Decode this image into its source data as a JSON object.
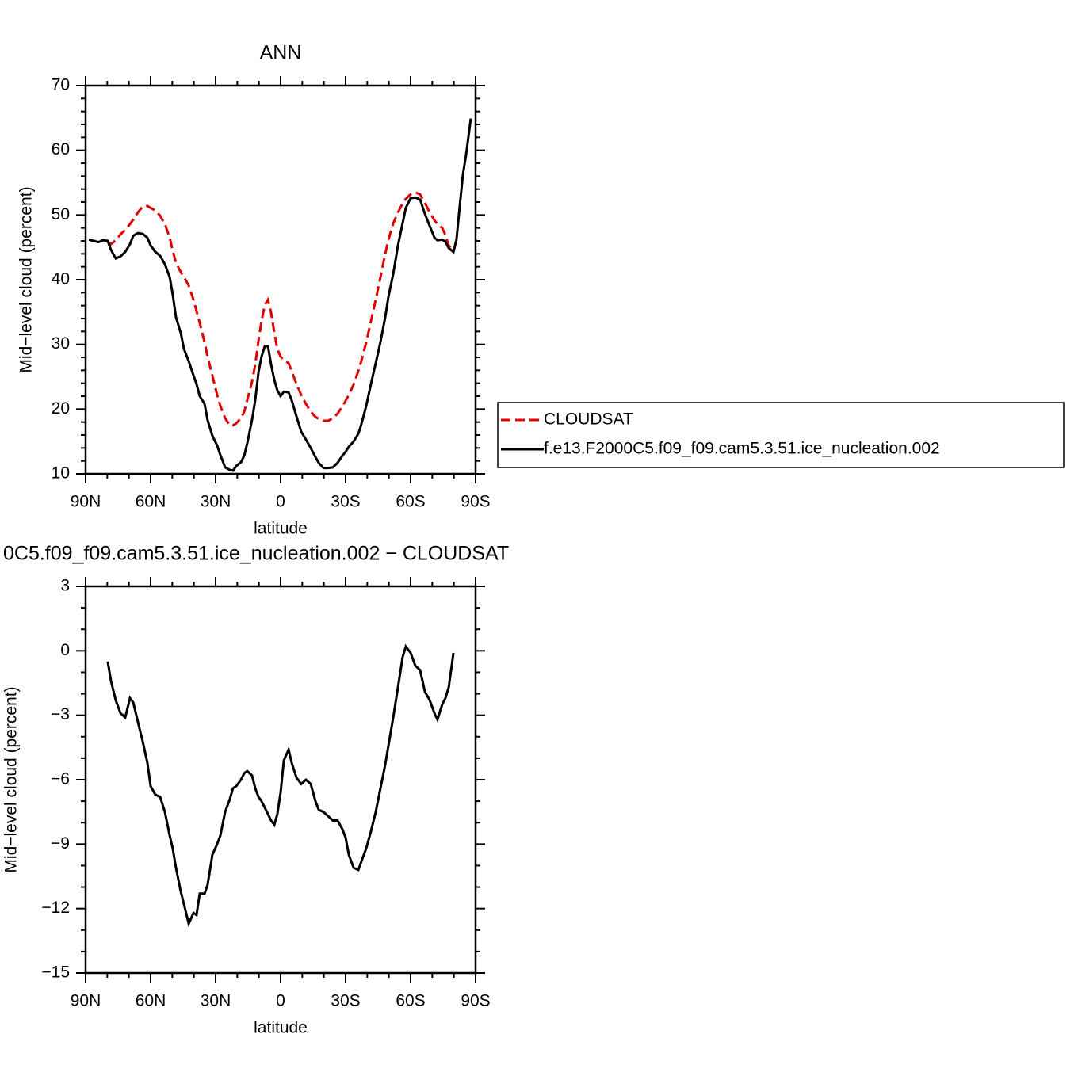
{
  "chart_data": [
    {
      "type": "line",
      "title": "ANN",
      "xlabel": "latitude",
      "ylabel": "Mid−level cloud (percent)",
      "legend": "right",
      "x": [
        88.5,
        86.3,
        84.1,
        82.0,
        79.8,
        78.3,
        76.1,
        73.9,
        71.7,
        69.5,
        68.0,
        65.9,
        63.7,
        61.5,
        60.0,
        57.8,
        55.6,
        53.4,
        51.2,
        49.8,
        48.3,
        46.1,
        44.6,
        42.4,
        40.2,
        38.8,
        37.3,
        35.1,
        33.7,
        31.5,
        29.3,
        27.8,
        25.6,
        23.4,
        22.0,
        20.5,
        18.3,
        16.8,
        15.4,
        13.2,
        11.7,
        10.2,
        8.8,
        7.3,
        5.8,
        4.4,
        2.9,
        1.5,
        0,
        -1.5,
        -3.7,
        -5.1,
        -7.3,
        -9.5,
        -11.7,
        -13.9,
        -16.1,
        -17.6,
        -19.8,
        -22.0,
        -24.1,
        -26.3,
        -28.5,
        -30.0,
        -31.5,
        -33.7,
        -35.9,
        -37.3,
        -39.5,
        -41.7,
        -43.9,
        -46.1,
        -48.3,
        -49.8,
        -52.0,
        -54.2,
        -56.3,
        -57.8,
        -60.0,
        -62.2,
        -64.4,
        -66.6,
        -68.8,
        -71.0,
        -72.4,
        -74.6,
        -76.1,
        -77.6,
        -79.8,
        -81.2,
        -82.7,
        -84.2,
        -85.6,
        -87.8
      ],
      "xlim": [
        90,
        -90
      ],
      "xticks": [
        {
          "value": 90,
          "label": "90N"
        },
        {
          "value": 60,
          "label": "60N"
        },
        {
          "value": 30,
          "label": "30N"
        },
        0,
        {
          "value": -30,
          "label": "30S"
        },
        {
          "value": -60,
          "label": "60S"
        },
        {
          "value": -90,
          "label": "90S"
        }
      ],
      "xminorticks": [
        80,
        70,
        50,
        40,
        20,
        10,
        -10,
        -20,
        -40,
        -50,
        -70,
        -80
      ],
      "ylim": [
        10,
        70
      ],
      "yticks": [
        10,
        20,
        30,
        40,
        50,
        60,
        70
      ],
      "yminorticks": [
        12,
        14,
        16,
        18,
        22,
        24,
        26,
        28,
        32,
        34,
        36,
        38,
        42,
        44,
        46,
        48,
        52,
        54,
        56,
        58,
        62,
        64,
        66,
        68
      ],
      "series": [
        {
          "name": "CLOUDSAT",
          "color": "#e00000",
          "style": "dashed",
          "values": [
            null,
            null,
            null,
            null,
            45.9,
            45.5,
            46.1,
            47.0,
            47.7,
            48.6,
            49.3,
            50.4,
            51.3,
            51.4,
            51.1,
            50.7,
            49.9,
            48.6,
            46.5,
            44.5,
            42.6,
            41.2,
            40.4,
            39.1,
            36.9,
            35.2,
            33.3,
            30.3,
            28.1,
            25.2,
            22.2,
            20.5,
            18.6,
            17.5,
            17.5,
            17.8,
            18.6,
            19.6,
            21.4,
            24.2,
            26.9,
            30.6,
            33.6,
            36.1,
            36.9,
            34.9,
            31.8,
            29.3,
            28.1,
            27.6,
            27.1,
            25.9,
            23.9,
            22.2,
            20.8,
            19.6,
            18.8,
            18.5,
            18.2,
            18.2,
            18.6,
            19.3,
            20.4,
            21.3,
            22.2,
            23.8,
            25.9,
            27.5,
            30.3,
            33.6,
            36.9,
            40.4,
            44.0,
            46.2,
            48.7,
            50.4,
            51.8,
            52.5,
            53.2,
            53.5,
            53.2,
            51.9,
            50.4,
            49.2,
            48.6,
            48.0,
            46.9,
            45.3,
            44.3,
            null,
            null,
            null,
            null,
            null
          ]
        },
        {
          "name": "f.e13.F2000C5.f09_f09.cam5.3.51.ice_nucleation.002",
          "color": "#000000",
          "style": "solid",
          "values": [
            46.2,
            46.0,
            45.8,
            46.1,
            46.0,
            44.6,
            43.3,
            43.6,
            44.3,
            45.5,
            46.8,
            47.2,
            47.1,
            46.5,
            45.3,
            44.3,
            43.7,
            42.4,
            40.4,
            37.7,
            34.2,
            31.8,
            29.3,
            27.4,
            25.2,
            23.9,
            22.0,
            20.8,
            18.3,
            15.9,
            14.4,
            12.9,
            11.0,
            10.6,
            10.5,
            11.2,
            11.8,
            12.8,
            14.7,
            18.3,
            21.4,
            25.7,
            28.1,
            29.7,
            29.7,
            26.9,
            24.5,
            22.9,
            22.0,
            22.7,
            22.6,
            21.4,
            18.9,
            16.5,
            15.3,
            14.0,
            12.6,
            11.7,
            10.9,
            10.9,
            11.0,
            11.7,
            12.8,
            13.4,
            14.2,
            15.0,
            16.2,
            17.7,
            20.5,
            23.9,
            27.1,
            30.4,
            34.2,
            37.4,
            40.9,
            45.3,
            48.7,
            51.1,
            52.6,
            52.7,
            52.4,
            50.2,
            48.3,
            46.5,
            46.1,
            46.2,
            45.9,
            44.9,
            44.3,
            46.2,
            51.4,
            56.3,
            59.3,
            64.9
          ]
        }
      ]
    },
    {
      "type": "line",
      "title": "0C5.f09_f09.cam5.3.51.ice_nucleation.002 − CLOUDSAT",
      "xlabel": "latitude",
      "ylabel": "Mid−level cloud (percent)",
      "x": [
        88.5,
        86.3,
        84.1,
        82.0,
        79.8,
        78.3,
        76.1,
        73.9,
        71.7,
        69.5,
        68.0,
        65.9,
        63.7,
        61.5,
        60.0,
        57.8,
        55.6,
        53.4,
        51.2,
        49.8,
        48.3,
        46.1,
        44.6,
        42.4,
        40.2,
        38.8,
        37.3,
        35.1,
        33.7,
        31.5,
        29.3,
        27.8,
        25.6,
        23.4,
        22.0,
        20.5,
        18.3,
        16.8,
        15.4,
        13.2,
        11.7,
        10.2,
        8.8,
        7.3,
        5.8,
        4.4,
        2.9,
        1.5,
        0,
        -1.5,
        -3.7,
        -5.1,
        -7.3,
        -9.5,
        -11.7,
        -13.9,
        -16.1,
        -17.6,
        -19.8,
        -22.0,
        -24.1,
        -26.3,
        -28.5,
        -30.0,
        -31.5,
        -33.7,
        -35.9,
        -37.3,
        -39.5,
        -41.7,
        -43.9,
        -46.1,
        -48.3,
        -49.8,
        -52.0,
        -54.2,
        -56.3,
        -57.8,
        -60.0,
        -62.2,
        -64.4,
        -66.6,
        -68.8,
        -71.0,
        -72.4,
        -74.6,
        -76.1,
        -77.6,
        -79.8,
        -81.2,
        -82.7,
        -84.2,
        -85.6,
        -87.8
      ],
      "xlim": [
        90,
        -90
      ],
      "xticks": [
        {
          "value": 90,
          "label": "90N"
        },
        {
          "value": 60,
          "label": "60N"
        },
        {
          "value": 30,
          "label": "30N"
        },
        0,
        {
          "value": -30,
          "label": "30S"
        },
        {
          "value": -60,
          "label": "60S"
        },
        {
          "value": -90,
          "label": "90S"
        }
      ],
      "xminorticks": [
        80,
        70,
        50,
        40,
        20,
        10,
        -10,
        -20,
        -40,
        -50,
        -70,
        -80
      ],
      "ylim": [
        -15,
        3
      ],
      "yticks": [
        {
          "value": -15,
          "label": "−15"
        },
        {
          "value": -12,
          "label": "−12"
        },
        {
          "value": -9,
          "label": "−9"
        },
        {
          "value": -6,
          "label": "−6"
        },
        {
          "value": -3,
          "label": "−3"
        },
        0,
        3
      ],
      "yminorticks": [
        -14,
        -13,
        -11,
        -10,
        -8,
        -7,
        -5,
        -4,
        -2,
        -1,
        1,
        2
      ],
      "series": [
        {
          "color": "#000000",
          "style": "solid",
          "values": [
            null,
            null,
            null,
            null,
            -0.5,
            -1.4,
            -2.3,
            -2.9,
            -3.1,
            -2.2,
            -2.4,
            -3.3,
            -4.2,
            -5.2,
            -6.3,
            -6.7,
            -6.8,
            -7.5,
            -8.6,
            -9.2,
            -10.1,
            -11.2,
            -11.8,
            -12.7,
            -12.2,
            -12.3,
            -11.3,
            -11.3,
            -10.9,
            -9.5,
            -9.0,
            -8.6,
            -7.5,
            -6.9,
            -6.4,
            -6.3,
            -6.0,
            -5.7,
            -5.6,
            -5.8,
            -6.4,
            -6.8,
            -7.0,
            -7.3,
            -7.6,
            -7.9,
            -8.1,
            -7.6,
            -6.6,
            -5.1,
            -4.6,
            -5.2,
            -5.9,
            -6.2,
            -6.0,
            -6.2,
            -7.0,
            -7.4,
            -7.5,
            -7.7,
            -7.9,
            -7.9,
            -8.3,
            -8.7,
            -9.5,
            -10.1,
            -10.2,
            -9.8,
            -9.2,
            -8.4,
            -7.5,
            -6.4,
            -5.3,
            -4.4,
            -3.1,
            -1.7,
            -0.3,
            0.2,
            -0.1,
            -0.7,
            -0.9,
            -1.9,
            -2.3,
            -2.9,
            -3.2,
            -2.5,
            -2.2,
            -1.7,
            -0.1,
            null,
            null,
            null,
            null,
            null
          ]
        }
      ]
    }
  ]
}
